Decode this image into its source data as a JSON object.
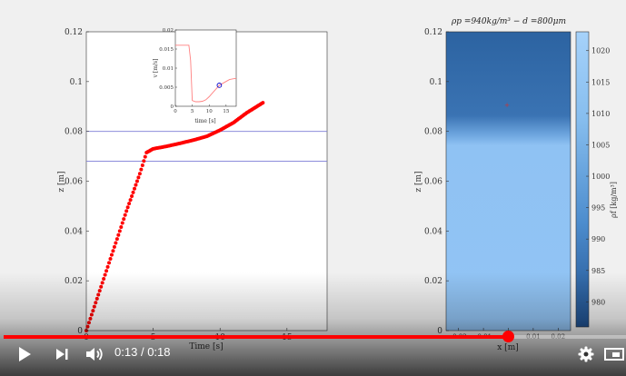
{
  "player": {
    "current_time": "0:13",
    "separator": "/",
    "duration": "0:18",
    "progress": 0.81
  },
  "left_plot": {
    "xlabel": "Time [s]",
    "ylabel": "z [m]",
    "x_ticks": [
      "0",
      "5",
      "10",
      "15"
    ],
    "y_ticks": [
      "0",
      "0.02",
      "0.04",
      "0.06",
      "0.08",
      "0.1",
      "0.12"
    ],
    "hlines": [
      0.068,
      0.08
    ]
  },
  "inset_plot": {
    "xlabel": "time [s]",
    "ylabel": "v [m/s]",
    "x_ticks": [
      "0",
      "5",
      "10",
      "15"
    ],
    "y_ticks": [
      "0",
      "0.005",
      "0.01",
      "0.015",
      "0.02"
    ]
  },
  "right_plot": {
    "title": "ρp =940kg/m³ − d =800μm",
    "xlabel": "x [m]",
    "ylabel": "z [m]",
    "x_ticks": [
      "-0.02",
      "-0.01",
      "0",
      "0.01",
      "0.02"
    ],
    "y_ticks": [
      "0",
      "0.02",
      "0.04",
      "0.06",
      "0.08",
      "0.1",
      "0.12"
    ],
    "colorbar_label": "ρf [kg/m³]",
    "colorbar_ticks": [
      "980",
      "985",
      "990",
      "995",
      "1000",
      "1005",
      "1010",
      "1015",
      "1020"
    ]
  },
  "chart_data": [
    {
      "type": "scatter",
      "xlabel": "Time [s]",
      "ylabel": "z [m]",
      "xlim": [
        0,
        18
      ],
      "ylim": [
        0,
        0.12
      ],
      "x": [
        0,
        1,
        2,
        3,
        4,
        4.5,
        5,
        6,
        7,
        8,
        9,
        10,
        11,
        12,
        13.2
      ],
      "y": [
        0,
        0.016,
        0.032,
        0.048,
        0.063,
        0.0715,
        0.073,
        0.074,
        0.0752,
        0.0765,
        0.078,
        0.0805,
        0.0835,
        0.0875,
        0.0915
      ],
      "color": "#ff0000"
    },
    {
      "type": "line",
      "xlabel": "time [s]",
      "ylabel": "v [m/s]",
      "xlim": [
        0,
        18
      ],
      "ylim": [
        0,
        0.02
      ],
      "x": [
        0,
        1,
        2,
        3,
        4,
        4.5,
        5,
        6,
        7,
        8,
        9,
        10,
        11,
        12,
        13,
        14,
        15,
        16,
        17,
        18
      ],
      "y": [
        0.016,
        0.016,
        0.016,
        0.016,
        0.016,
        0.012,
        0.0015,
        0.0012,
        0.0012,
        0.0013,
        0.0017,
        0.0025,
        0.0035,
        0.0045,
        0.0055,
        0.006,
        0.0065,
        0.007,
        0.0072,
        0.0073
      ],
      "marker_x": 13,
      "marker_y": 0.0055,
      "color": "#ff8080"
    },
    {
      "type": "heatmap",
      "xlabel": "x [m]",
      "ylabel": "z [m]",
      "xlim": [
        -0.025,
        0.025
      ],
      "ylim": [
        0,
        0.12
      ],
      "upper_value": 980,
      "lower_value": 1022,
      "interface_z": 0.075,
      "particle_x": -0.001,
      "particle_z": 0.0915,
      "colorbar_range": [
        976,
        1023
      ]
    }
  ],
  "icons": {
    "play": "play-icon",
    "next": "next-icon",
    "volume": "volume-icon",
    "settings": "gear-icon",
    "theater": "theater-mode-icon"
  },
  "colors": {
    "progress": "#ff0000",
    "data": "#ff0000",
    "heat_top": "#2b62a0",
    "heat_bottom": "#8fc2f3"
  }
}
